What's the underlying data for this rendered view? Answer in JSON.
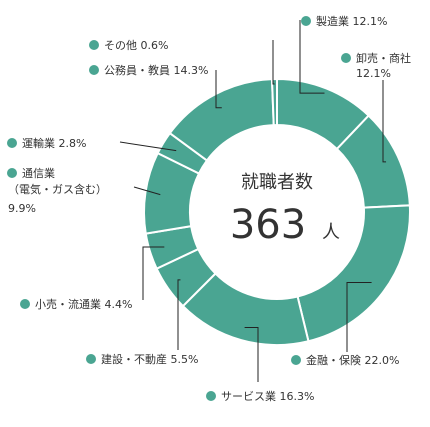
{
  "chart_data": {
    "type": "pie",
    "donut": true,
    "center_label": "就職者数",
    "center_value": "363",
    "center_unit": "人",
    "color": "#4aa592",
    "slices": [
      {
        "label": "製造業",
        "value": 12.1,
        "value_text": "12.1%"
      },
      {
        "label": "卸売・商社",
        "value": 12.1,
        "value_text": "12.1%"
      },
      {
        "label": "金融・保険",
        "value": 22.0,
        "value_text": "22.0%"
      },
      {
        "label": "サービス業",
        "value": 16.3,
        "value_text": "16.3%"
      },
      {
        "label": "建設・不動産",
        "value": 5.5,
        "value_text": "5.5%"
      },
      {
        "label": "小売・流通業",
        "value": 4.4,
        "value_text": "4.4%"
      },
      {
        "label": "通信業 （電気・ガス含む）",
        "value": 9.9,
        "value_text": "9.9%"
      },
      {
        "label": "運輸業",
        "value": 2.8,
        "value_text": "2.8%"
      },
      {
        "label": "公務員・教員",
        "value": 14.3,
        "value_text": "14.3%"
      },
      {
        "label": "その他",
        "value": 0.6,
        "value_text": "0.6%"
      }
    ]
  }
}
